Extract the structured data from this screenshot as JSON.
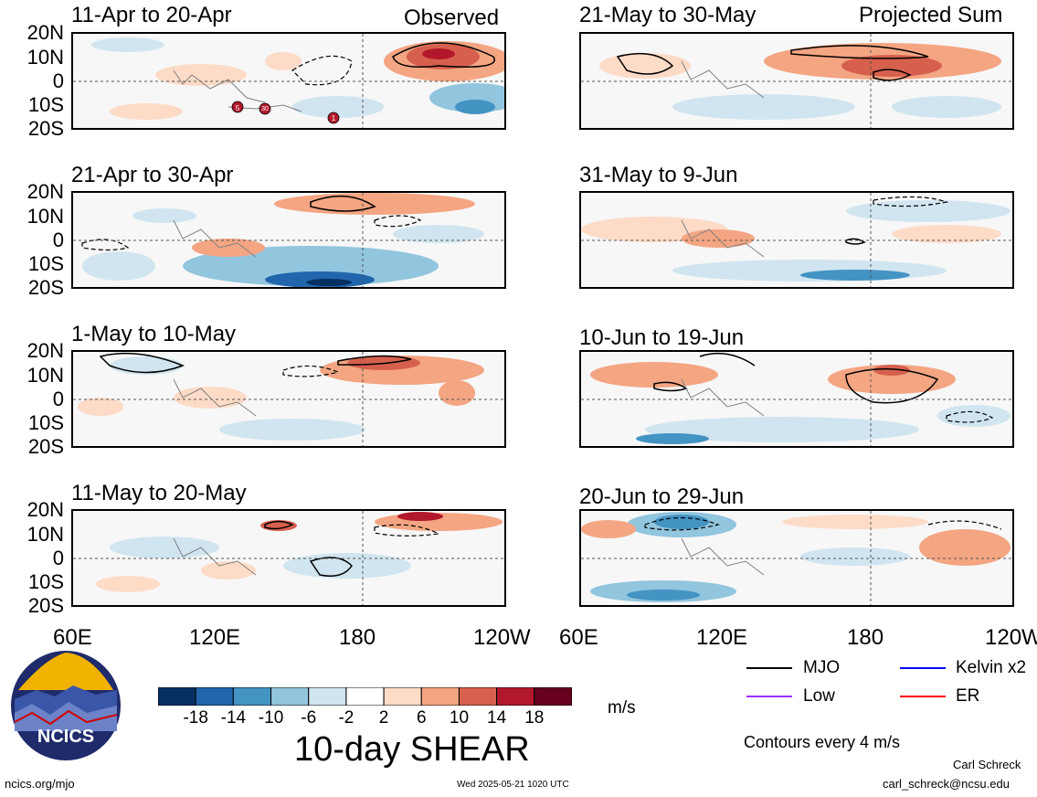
{
  "panels": [
    {
      "title": "11-Apr to 20-Apr",
      "tag": "Observed"
    },
    {
      "title": "21-Apr to 30-Apr",
      "tag": ""
    },
    {
      "title": "1-May to 10-May",
      "tag": ""
    },
    {
      "title": "11-May to 20-May",
      "tag": ""
    },
    {
      "title": "21-May to 30-May",
      "tag": "Projected Sum"
    },
    {
      "title": "31-May to 9-Jun",
      "tag": ""
    },
    {
      "title": "10-Jun to 19-Jun",
      "tag": ""
    },
    {
      "title": "20-Jun to 29-Jun",
      "tag": ""
    }
  ],
  "lat_labels": [
    "20N",
    "10N",
    "0",
    "10S",
    "20S"
  ],
  "lon_labels": [
    "60E",
    "120E",
    "180",
    "120W"
  ],
  "storm_markers": [
    "5",
    "30",
    "1"
  ],
  "colorbar": {
    "ticks": [
      "-18",
      "-14",
      "-10",
      "-6",
      "-2",
      "2",
      "6",
      "10",
      "14",
      "18"
    ],
    "colors": [
      "#053061",
      "#2166ac",
      "#4393c3",
      "#92c5de",
      "#d1e5f0",
      "#ffffff",
      "#fddbc7",
      "#f4a582",
      "#d6604d",
      "#b2182b",
      "#67001f"
    ],
    "units": "m/s",
    "title": "10-day SHEAR"
  },
  "legend": {
    "items": [
      {
        "label": "MJO",
        "color": "#000000"
      },
      {
        "label": "Kelvin x2",
        "color": "#0000ff"
      },
      {
        "label": "Low",
        "color": "#9b30ff"
      },
      {
        "label": "ER",
        "color": "#ff0000"
      }
    ],
    "contour_note": "Contours every 4 m/s"
  },
  "logo": {
    "text": "NCICS"
  },
  "footer": {
    "url": "ncics.org/mjo",
    "timestamp": "Wed 2025-05-21 1020 UTC",
    "author": "Carl Schreck",
    "email": "carl_schreck@ncsu.edu"
  }
}
